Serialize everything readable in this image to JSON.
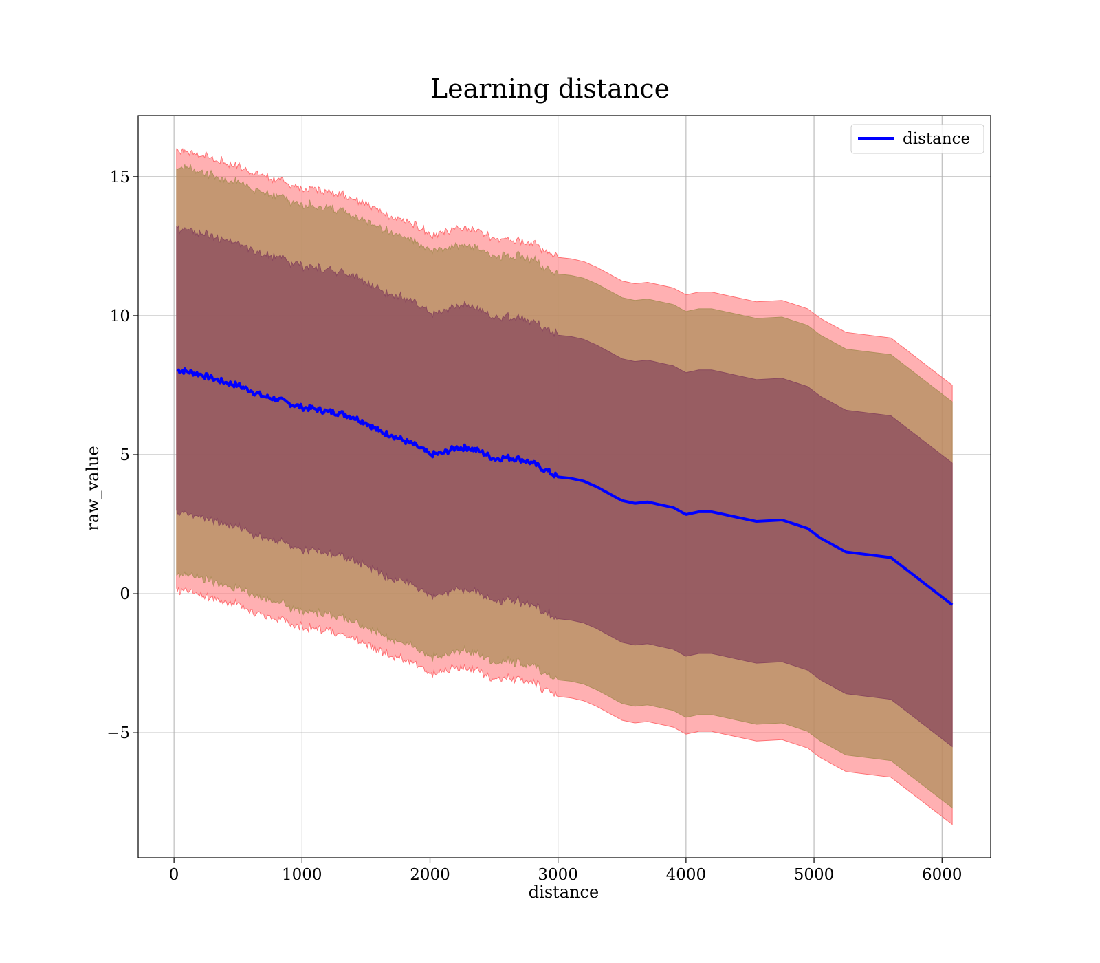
{
  "chart_data": {
    "type": "line",
    "title": "Learning distance",
    "xlabel": "distance",
    "ylabel": "raw_value",
    "xlim": [
      -280,
      6380
    ],
    "ylim": [
      -9.5,
      17.2
    ],
    "xticks": [
      0,
      1000,
      2000,
      3000,
      4000,
      5000,
      6000
    ],
    "yticks": [
      -5,
      0,
      5,
      10,
      15
    ],
    "xtick_labels": [
      "0",
      "1000",
      "2000",
      "3000",
      "4000",
      "5000",
      "6000"
    ],
    "ytick_labels": [
      "−5",
      "0",
      "5",
      "10",
      "15"
    ],
    "grid": true,
    "legend": {
      "position": "top-right",
      "entries": [
        "distance"
      ]
    },
    "colors": {
      "line": "#0000ff",
      "outer_band": "#ff6f73",
      "middle_band": "#b08f5c",
      "inner_band": "#8a4a5e",
      "grid": "#b0b0b0"
    },
    "series": [
      {
        "name": "distance",
        "x": [
          20,
          100,
          200,
          300,
          400,
          500,
          600,
          700,
          800,
          900,
          1000,
          1100,
          1200,
          1300,
          1400,
          1500,
          1600,
          1700,
          1800,
          1900,
          2000,
          2100,
          2200,
          2300,
          2400,
          2500,
          2600,
          2700,
          2800,
          2900,
          3000,
          3100,
          3200,
          3300,
          3400,
          3500,
          3600,
          3700,
          3800,
          3900,
          4000,
          4100,
          4200,
          4300,
          4400,
          4550,
          4750,
          4950,
          5050,
          5250,
          5600,
          6080
        ],
        "y": [
          8.05,
          8.0,
          7.9,
          7.75,
          7.6,
          7.5,
          7.3,
          7.1,
          7.0,
          6.85,
          6.7,
          6.65,
          6.55,
          6.5,
          6.35,
          6.15,
          5.85,
          5.7,
          5.5,
          5.3,
          5.0,
          5.05,
          5.25,
          5.25,
          5.1,
          4.85,
          4.9,
          4.85,
          4.7,
          4.45,
          4.2,
          4.15,
          4.05,
          3.85,
          3.6,
          3.35,
          3.25,
          3.3,
          3.2,
          3.1,
          2.85,
          2.95,
          2.95,
          2.85,
          2.75,
          2.6,
          2.65,
          2.35,
          2.0,
          1.5,
          1.3,
          -0.4
        ]
      }
    ],
    "bands": [
      {
        "offset_upper": 7.9,
        "offset_lower": 7.9,
        "color": "#ff6f73"
      },
      {
        "offset_upper": 7.3,
        "offset_lower": 7.3,
        "color": "#b08f5c"
      },
      {
        "offset_upper": 5.1,
        "offset_lower": 5.1,
        "color": "#8a4a5e"
      }
    ]
  }
}
